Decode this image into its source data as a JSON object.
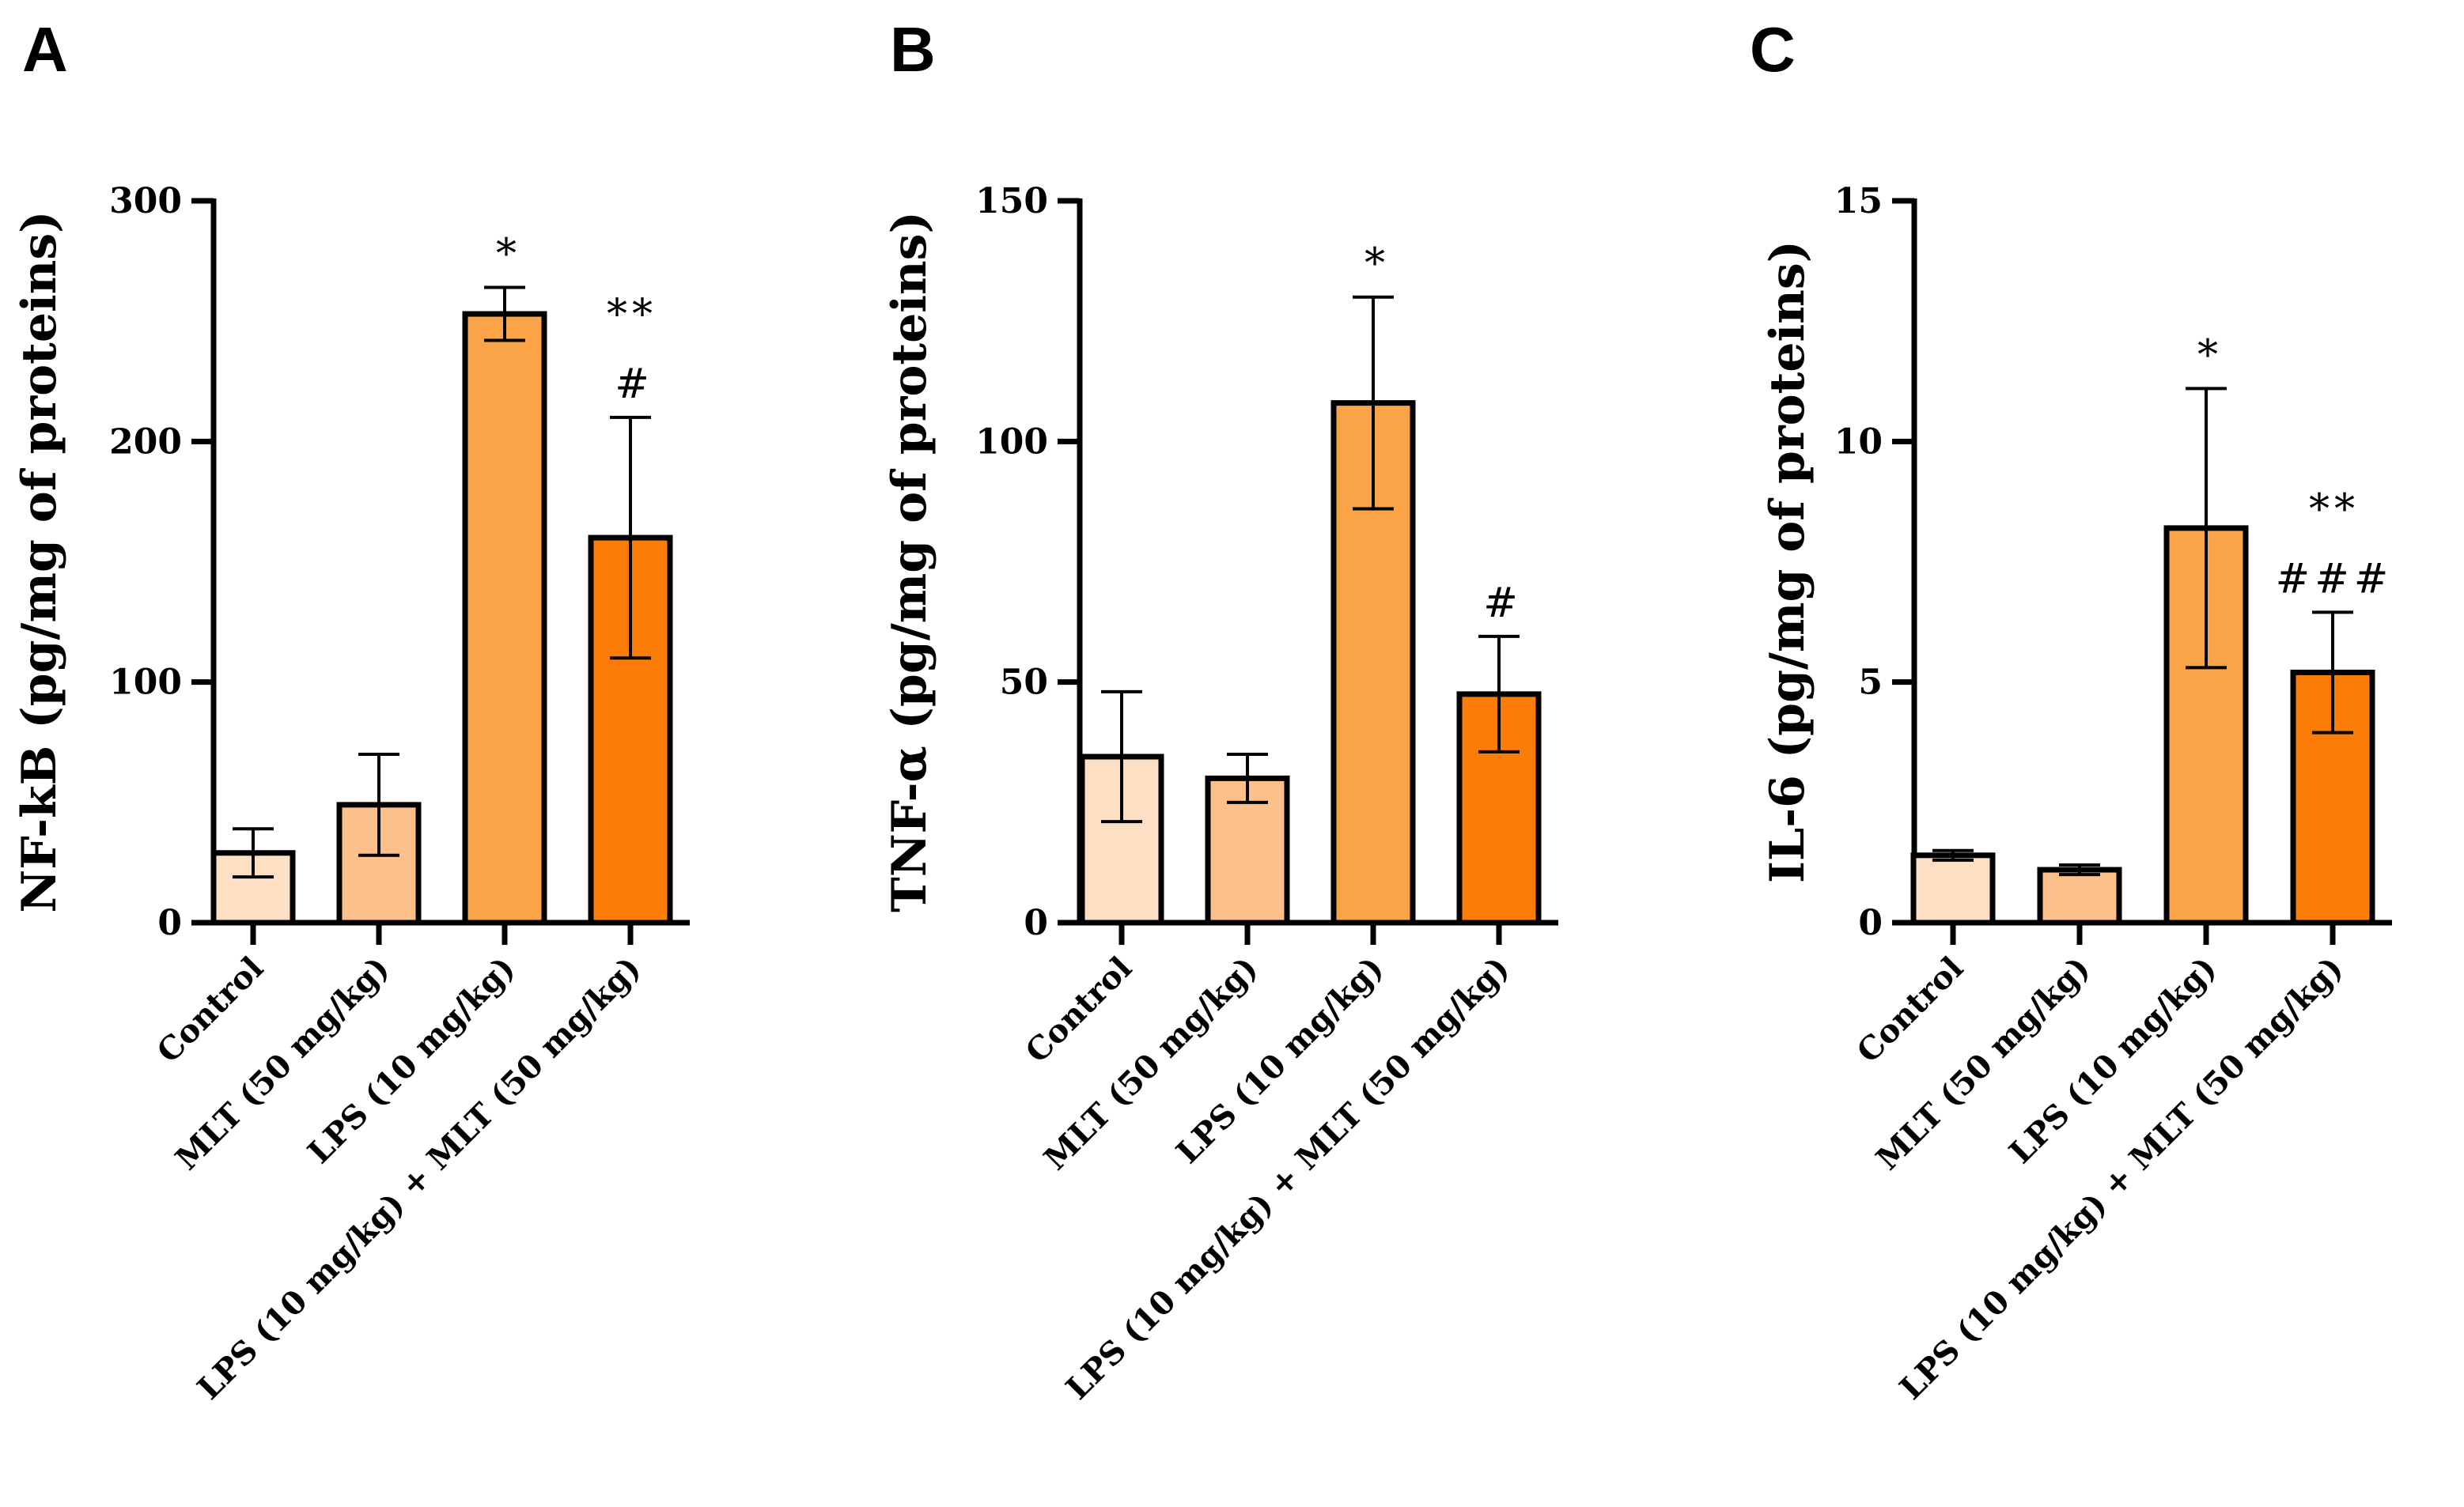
{
  "chart_data": [
    {
      "panel": "A",
      "type": "bar",
      "ylabel": "NF-kB  (pg/mg of proteins)",
      "ylim": [
        0,
        300
      ],
      "yticks": [
        0,
        100,
        200,
        300
      ],
      "categories": [
        "Control",
        "MLT (50 mg/kg)",
        "LPS (10 mg/kg)",
        "LPS (10 mg/kg) + MLT (50 mg/kg)"
      ],
      "values": [
        29,
        49,
        253,
        160
      ],
      "errors": [
        10,
        21,
        11,
        50
      ],
      "significance": [
        [],
        [],
        [
          "*"
        ],
        [
          "**",
          "#"
        ]
      ],
      "colors": [
        "#fde0c3",
        "#fdc08a",
        "#fba347",
        "#fb7d07"
      ]
    },
    {
      "panel": "B",
      "type": "bar",
      "ylabel": "TNF-α (pg/mg of proteins)",
      "ylim": [
        0,
        150
      ],
      "yticks": [
        0,
        50,
        100,
        150
      ],
      "categories": [
        "Control",
        "MLT (50 mg/kg)",
        "LPS (10 mg/kg)",
        "LPS (10 mg/kg) + MLT (50 mg/kg)"
      ],
      "values": [
        34.5,
        30,
        108,
        47.5
      ],
      "errors": [
        13.5,
        5,
        22,
        12
      ],
      "significance": [
        [],
        [],
        [
          "*"
        ],
        [
          "#"
        ]
      ],
      "colors": [
        "#fde0c3",
        "#fdc08a",
        "#fba347",
        "#fb7d07"
      ]
    },
    {
      "panel": "C",
      "type": "bar",
      "ylabel": "IL-6 (pg/mg of proteins)",
      "ylim": [
        0,
        15
      ],
      "yticks": [
        0,
        5,
        10,
        15
      ],
      "categories": [
        "Control",
        "MLT (50 mg/kg)",
        "LPS (10 mg/kg)",
        "LPS (10 mg/kg) + MLT (50 mg/kg)"
      ],
      "values": [
        1.4,
        1.1,
        8.2,
        5.2
      ],
      "errors": [
        0.1,
        0.1,
        2.9,
        1.25
      ],
      "significance": [
        [],
        [],
        [
          "*"
        ],
        [
          "**",
          "###"
        ]
      ],
      "colors": [
        "#fde0c3",
        "#fdc08a",
        "#fba347",
        "#fb7d07"
      ]
    }
  ]
}
